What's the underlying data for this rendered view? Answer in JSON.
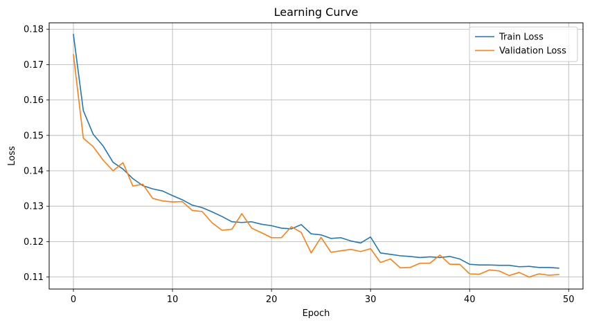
{
  "chart_data": {
    "type": "line",
    "title": "Learning Curve",
    "xlabel": "Epoch",
    "ylabel": "Loss",
    "xlim": [
      -2.45,
      51.45
    ],
    "ylim": [
      0.1066,
      0.1818
    ],
    "xticks": [
      0,
      10,
      20,
      30,
      40,
      50
    ],
    "yticks": [
      0.11,
      0.12,
      0.13,
      0.14,
      0.15,
      0.16,
      0.17,
      0.18
    ],
    "grid": true,
    "legend_position": "top-right",
    "x": [
      0,
      1,
      2,
      3,
      4,
      5,
      6,
      7,
      8,
      9,
      10,
      11,
      12,
      13,
      14,
      15,
      16,
      17,
      18,
      19,
      20,
      21,
      22,
      23,
      24,
      25,
      26,
      27,
      28,
      29,
      30,
      31,
      32,
      33,
      34,
      35,
      36,
      37,
      38,
      39,
      40,
      41,
      42,
      43,
      44,
      45,
      46,
      47,
      48,
      49
    ],
    "series": [
      {
        "name": "Train Loss",
        "color": "#1f77b4",
        "values": [
          0.1785,
          0.157,
          0.1503,
          0.147,
          0.1424,
          0.1405,
          0.1378,
          0.1358,
          0.1349,
          0.1343,
          0.133,
          0.1318,
          0.1303,
          0.1296,
          0.1284,
          0.1271,
          0.1256,
          0.1254,
          0.1256,
          0.1249,
          0.1245,
          0.1238,
          0.1236,
          0.1248,
          0.1222,
          0.1219,
          0.1209,
          0.1211,
          0.1202,
          0.1196,
          0.1213,
          0.1168,
          0.1164,
          0.116,
          0.1158,
          0.1155,
          0.1157,
          0.1155,
          0.1158,
          0.1151,
          0.1136,
          0.1134,
          0.1134,
          0.1133,
          0.1133,
          0.1129,
          0.113,
          0.1127,
          0.1127,
          0.1125
        ]
      },
      {
        "name": "Validation Loss",
        "color": "#ff7f0e",
        "values": [
          0.1728,
          0.1492,
          0.1468,
          0.143,
          0.14,
          0.1423,
          0.1357,
          0.1362,
          0.1322,
          0.1315,
          0.1312,
          0.1313,
          0.1288,
          0.1285,
          0.1253,
          0.1232,
          0.1235,
          0.1279,
          0.1238,
          0.1225,
          0.1211,
          0.1211,
          0.1242,
          0.1226,
          0.1168,
          0.1212,
          0.117,
          0.1174,
          0.1178,
          0.1172,
          0.118,
          0.1141,
          0.1151,
          0.1126,
          0.1127,
          0.1139,
          0.1139,
          0.1162,
          0.1136,
          0.1136,
          0.1109,
          0.1108,
          0.112,
          0.1117,
          0.1104,
          0.1113,
          0.11,
          0.1109,
          0.1105,
          0.1107
        ]
      }
    ]
  }
}
